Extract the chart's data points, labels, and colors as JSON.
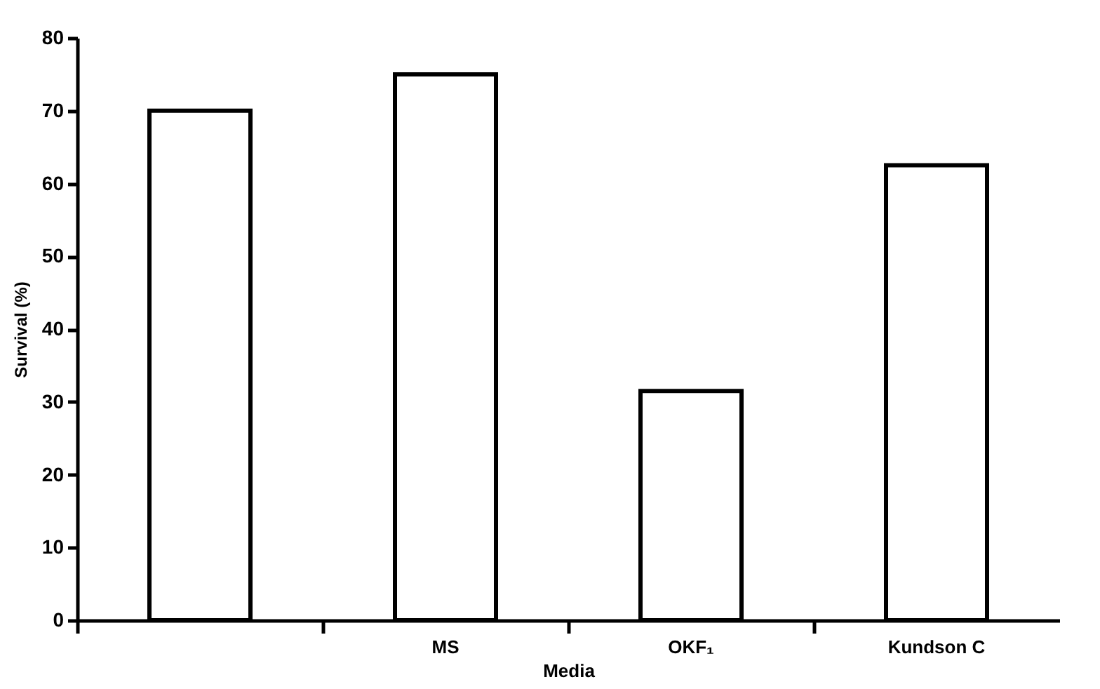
{
  "chart_data": {
    "type": "bar",
    "xlabel": "Media",
    "ylabel": "Survival (%)",
    "categories": [
      null,
      "MS",
      "OKF₁",
      "Kundson C"
    ],
    "values": [
      70,
      75,
      31.5,
      62.5
    ],
    "color": "#ffffff",
    "ylim": [
      0,
      80
    ],
    "yticks": [
      0,
      10,
      20,
      30,
      40,
      50,
      60,
      70,
      80
    ],
    "grid": false
  }
}
